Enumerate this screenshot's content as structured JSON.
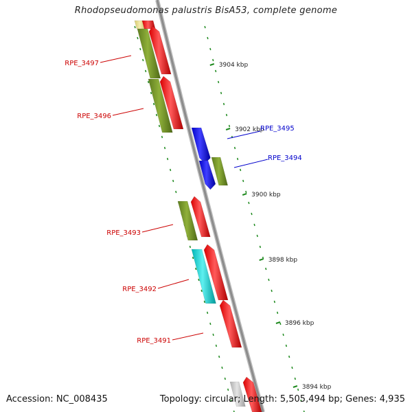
{
  "title": "Rhodopseudomonas palustris BisA53, complete genome",
  "footer": {
    "accession": "Accession: NC_008435",
    "topology": "Topology: circular; Length: 5,505,494 bp; Genes: 4,935"
  },
  "colors": {
    "backbone": "#8c8c8c",
    "tick": "#1f8a1f",
    "gene_label_forward": "#cc0000",
    "gene_label_reverse": "#0000cc",
    "olive": "#6b8e23",
    "red": "#ff0000",
    "blue": "#0000ff",
    "cyan": "#00cccc",
    "grey": "#c8c8c8",
    "yellow": "#e8dc8a"
  },
  "scale_labels": [
    "3904 kbp",
    "3902 kbp",
    "3900 kbp",
    "3898 kbp",
    "3896 kbp",
    "3894 kbp"
  ],
  "gene_labels": [
    {
      "text": "RPE_3497",
      "strand": "forward"
    },
    {
      "text": "RPE_3496",
      "strand": "forward"
    },
    {
      "text": "RPE_3495",
      "strand": "reverse"
    },
    {
      "text": "RPE_3494",
      "strand": "reverse"
    },
    {
      "text": "RPE_3493",
      "strand": "forward"
    },
    {
      "text": "RPE_3492",
      "strand": "forward"
    },
    {
      "text": "RPE_3491",
      "strand": "forward"
    }
  ]
}
